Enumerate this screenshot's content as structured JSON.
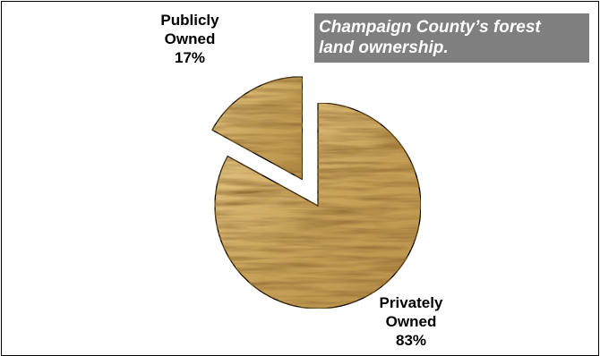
{
  "chart_data": {
    "type": "pie",
    "title_lines": [
      "Champaign County’s forest",
      "land ownership."
    ],
    "slices": [
      {
        "label_lines": [
          "Publicly",
          "Owned"
        ],
        "pct_label": "17%",
        "value": 17
      },
      {
        "label_lines": [
          "Privately",
          "Owned"
        ],
        "pct_label": "83%",
        "value": 83
      }
    ],
    "legend": "none",
    "fill_texture": "oak-wood-grain",
    "colors": {
      "wood_base": "#c9a45c",
      "wood_dark": "#8a6326",
      "wood_light": "#e9cd8a",
      "title_bg": "#7f7f7f",
      "title_text": "#ffffff"
    }
  }
}
